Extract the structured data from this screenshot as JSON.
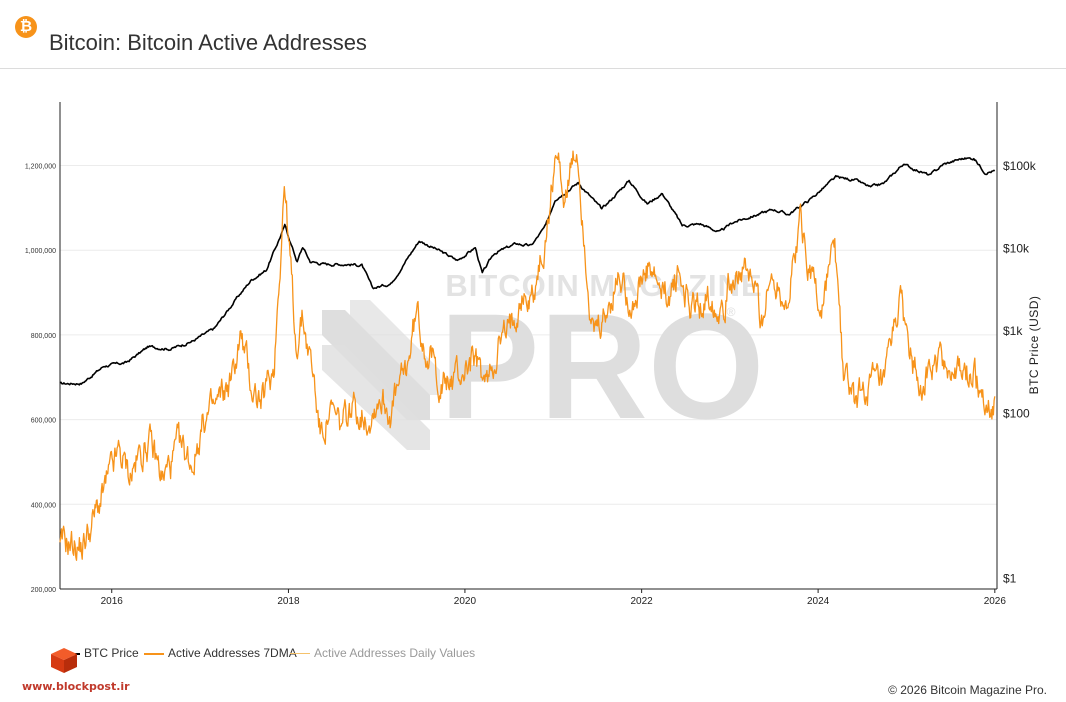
{
  "header": {
    "icon": "bitcoin-icon",
    "title": "Bitcoin: Bitcoin Active Addresses"
  },
  "watermark": {
    "top": "BITCOIN MAGAZINE",
    "main": "PRO",
    "mark": "®"
  },
  "colors": {
    "price": "#000000",
    "active_7dma": "#f7931a",
    "active_daily": "#f5c26b",
    "grid": "#ececec",
    "watermark": "#d9d9d9"
  },
  "chart_data": {
    "type": "line",
    "title": "Bitcoin: Bitcoin Active Addresses",
    "x_ticks": [
      "2016",
      "2018",
      "2020",
      "2022",
      "2024",
      "2026"
    ],
    "y_left": {
      "range": [
        200000,
        1350000
      ],
      "ticks": [
        200000,
        400000,
        600000,
        800000,
        1000000,
        1200000
      ],
      "tick_labels": [
        "200,000",
        "400,000",
        "600,000",
        "800,000",
        "1,000,000",
        "1,200,000"
      ]
    },
    "y_right": {
      "label": "BTC Price (USD)",
      "scale": "log",
      "range": [
        0.75,
        600000
      ],
      "ticks": [
        1,
        100,
        1000,
        10000,
        100000
      ],
      "tick_labels": [
        "$1",
        "$100",
        "$1k",
        "$10k",
        "$100k"
      ]
    },
    "grid": true,
    "legend_position": "bottom-left",
    "series": [
      {
        "name": "BTC Price",
        "axis": "right",
        "color": "#000000",
        "points": [
          [
            "2015-06-01",
            230
          ],
          [
            "2015-09-01",
            235
          ],
          [
            "2015-12-01",
            380
          ],
          [
            "2016-03-01",
            415
          ],
          [
            "2016-06-01",
            650
          ],
          [
            "2016-09-01",
            610
          ],
          [
            "2016-12-01",
            760
          ],
          [
            "2017-03-01",
            1080
          ],
          [
            "2017-06-01",
            2500
          ],
          [
            "2017-08-01",
            4200
          ],
          [
            "2017-10-01",
            5500
          ],
          [
            "2017-12-17",
            19000
          ],
          [
            "2018-02-06",
            7000
          ],
          [
            "2018-03-01",
            10500
          ],
          [
            "2018-04-01",
            7000
          ],
          [
            "2018-06-01",
            6500
          ],
          [
            "2018-09-01",
            6500
          ],
          [
            "2018-11-01",
            6300
          ],
          [
            "2018-12-15",
            3300
          ],
          [
            "2019-03-01",
            3800
          ],
          [
            "2019-06-26",
            12500
          ],
          [
            "2019-09-01",
            10000
          ],
          [
            "2019-12-01",
            7200
          ],
          [
            "2020-02-13",
            10300
          ],
          [
            "2020-03-13",
            5000
          ],
          [
            "2020-05-01",
            8800
          ],
          [
            "2020-08-01",
            11500
          ],
          [
            "2020-10-01",
            10800
          ],
          [
            "2020-12-01",
            19000
          ],
          [
            "2021-01-08",
            40000
          ],
          [
            "2021-04-14",
            63000
          ],
          [
            "2021-07-20",
            30000
          ],
          [
            "2021-11-10",
            67000
          ],
          [
            "2022-01-24",
            35000
          ],
          [
            "2022-03-28",
            47000
          ],
          [
            "2022-06-18",
            19000
          ],
          [
            "2022-09-01",
            20000
          ],
          [
            "2022-11-21",
            15800
          ],
          [
            "2023-01-15",
            21000
          ],
          [
            "2023-03-01",
            23000
          ],
          [
            "2023-07-01",
            30000
          ],
          [
            "2023-09-01",
            26000
          ],
          [
            "2023-12-01",
            40000
          ],
          [
            "2024-03-14",
            73000
          ],
          [
            "2024-06-01",
            68000
          ],
          [
            "2024-08-05",
            55000
          ],
          [
            "2024-10-01",
            62000
          ],
          [
            "2024-12-17",
            106000
          ],
          [
            "2025-04-08",
            77000
          ],
          [
            "2025-06-01",
            105000
          ],
          [
            "2025-08-14",
            123000
          ],
          [
            "2025-10-06",
            125000
          ],
          [
            "2025-11-21",
            85000
          ],
          [
            "2026-01-01",
            88000
          ]
        ]
      },
      {
        "name": "Active Addresses 7DMA",
        "axis": "left",
        "color": "#f7931a",
        "points": [
          [
            "2015-06-01",
            290000
          ],
          [
            "2015-07-01",
            310000
          ],
          [
            "2015-09-01",
            300000
          ],
          [
            "2015-10-15",
            360000
          ],
          [
            "2015-12-01",
            430000
          ],
          [
            "2016-02-01",
            520000
          ],
          [
            "2016-03-15",
            470000
          ],
          [
            "2016-06-01",
            550000
          ],
          [
            "2016-08-01",
            460000
          ],
          [
            "2016-10-01",
            530000
          ],
          [
            "2016-12-01",
            500000
          ],
          [
            "2017-01-15",
            600000
          ],
          [
            "2017-03-01",
            620000
          ],
          [
            "2017-05-15",
            700000
          ],
          [
            "2017-06-15",
            800000
          ],
          [
            "2017-08-01",
            680000
          ],
          [
            "2017-09-15",
            640000
          ],
          [
            "2017-11-01",
            720000
          ],
          [
            "2017-12-15",
            1160000
          ],
          [
            "2018-02-01",
            780000
          ],
          [
            "2018-03-01",
            840000
          ],
          [
            "2018-04-15",
            700000
          ],
          [
            "2018-05-15",
            560000
          ],
          [
            "2018-06-15",
            620000
          ],
          [
            "2018-08-01",
            580000
          ],
          [
            "2018-10-01",
            630000
          ],
          [
            "2018-12-01",
            610000
          ],
          [
            "2019-01-15",
            660000
          ],
          [
            "2019-03-01",
            620000
          ],
          [
            "2019-05-01",
            710000
          ],
          [
            "2019-06-15",
            850000
          ],
          [
            "2019-08-01",
            760000
          ],
          [
            "2019-10-01",
            680000
          ],
          [
            "2019-12-01",
            700000
          ],
          [
            "2020-02-01",
            740000
          ],
          [
            "2020-04-01",
            680000
          ],
          [
            "2020-05-15",
            780000
          ],
          [
            "2020-07-01",
            800000
          ],
          [
            "2020-08-15",
            900000
          ],
          [
            "2020-10-01",
            880000
          ],
          [
            "2020-12-01",
            1020000
          ],
          [
            "2021-01-10",
            1240000
          ],
          [
            "2021-02-15",
            1130000
          ],
          [
            "2021-04-10",
            1230000
          ],
          [
            "2021-05-15",
            990000
          ],
          [
            "2021-06-15",
            780000
          ],
          [
            "2021-08-01",
            830000
          ],
          [
            "2021-10-01",
            940000
          ],
          [
            "2021-12-01",
            880000
          ],
          [
            "2022-02-01",
            950000
          ],
          [
            "2022-04-01",
            880000
          ],
          [
            "2022-06-01",
            940000
          ],
          [
            "2022-08-01",
            860000
          ],
          [
            "2022-10-01",
            890000
          ],
          [
            "2022-12-01",
            880000
          ],
          [
            "2023-02-01",
            960000
          ],
          [
            "2023-04-01",
            920000
          ],
          [
            "2023-05-15",
            850000
          ],
          [
            "2023-07-01",
            940000
          ],
          [
            "2023-09-01",
            880000
          ],
          [
            "2023-10-20",
            1070000
          ],
          [
            "2023-12-01",
            960000
          ],
          [
            "2024-01-15",
            850000
          ],
          [
            "2024-02-15",
            960000
          ],
          [
            "2024-03-10",
            1000000
          ],
          [
            "2024-04-15",
            710000
          ],
          [
            "2024-06-01",
            640000
          ],
          [
            "2024-08-01",
            680000
          ],
          [
            "2024-10-01",
            660000
          ],
          [
            "2024-12-01",
            880000
          ],
          [
            "2025-02-01",
            720000
          ],
          [
            "2025-04-01",
            700000
          ],
          [
            "2025-06-01",
            740000
          ],
          [
            "2025-08-01",
            700000
          ],
          [
            "2025-10-01",
            710000
          ],
          [
            "2025-11-15",
            660000
          ],
          [
            "2025-12-20",
            625000
          ],
          [
            "2026-01-01",
            655000
          ]
        ]
      },
      {
        "name": "Active Addresses Daily Values",
        "axis": "left",
        "color": "#f5c26b",
        "visible": false,
        "points": []
      }
    ]
  },
  "footer": {
    "site_url": "www.blockpost.ir",
    "site_logo": "cube-logo-icon",
    "copyright": "© 2026 Bitcoin Magazine Pro."
  }
}
